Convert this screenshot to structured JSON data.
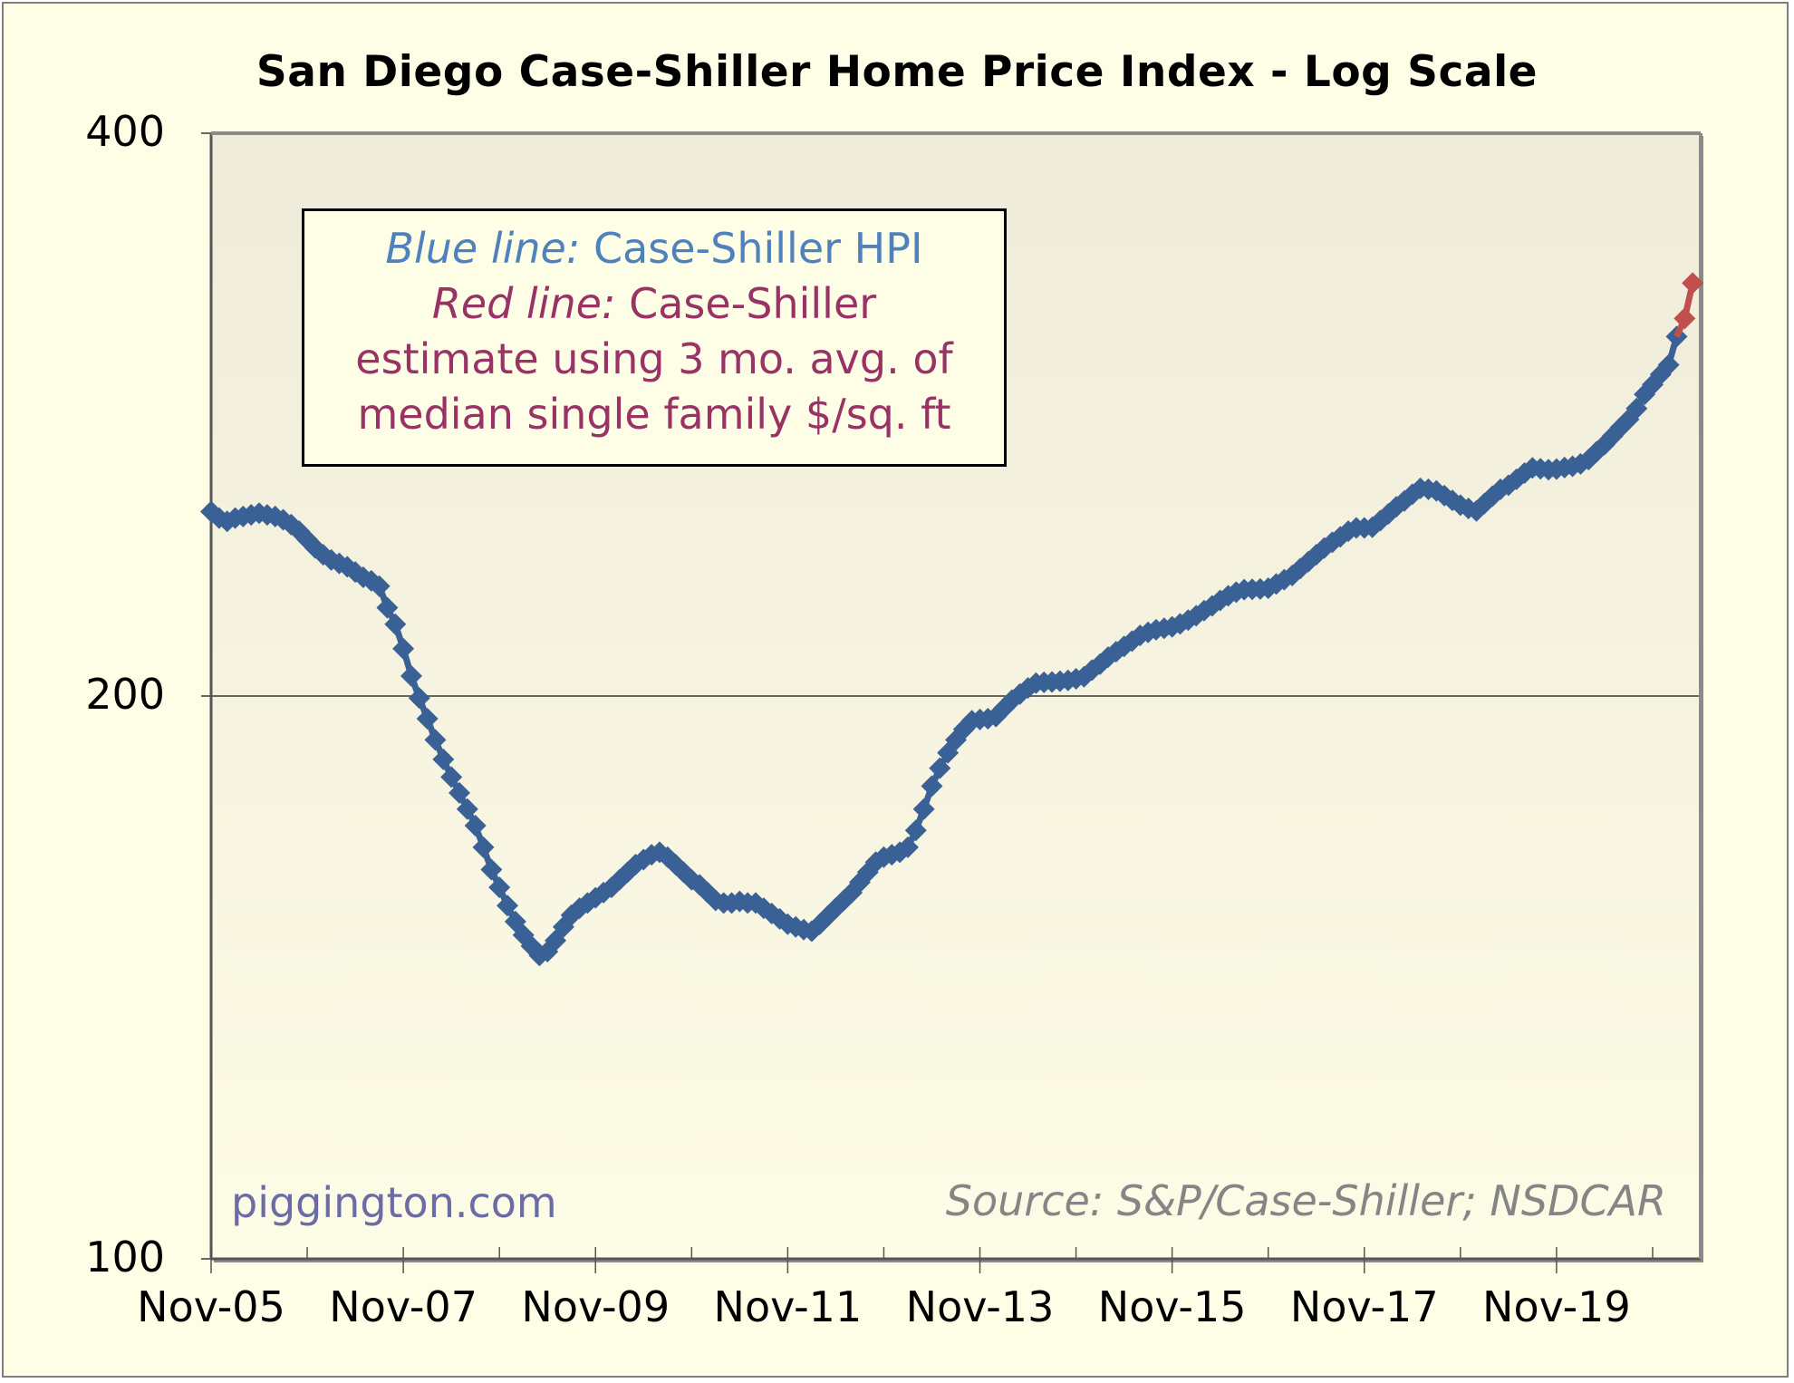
{
  "chart_data": {
    "type": "line",
    "title": "San Diego Case-Shiller Home Price Index - Log Scale",
    "xlabel": "",
    "ylabel": "",
    "yscale": "log",
    "ylim": [
      100,
      400
    ],
    "yticks": [
      {
        "value": 100,
        "label": "100"
      },
      {
        "value": 200,
        "label": "200"
      },
      {
        "value": 400,
        "label": "400"
      }
    ],
    "x_unit": "months since Nov-05",
    "xlim": [
      0,
      186
    ],
    "xticks_major": [
      {
        "value": 0,
        "label": "Nov-05"
      },
      {
        "value": 24,
        "label": "Nov-07"
      },
      {
        "value": 48,
        "label": "Nov-09"
      },
      {
        "value": 72,
        "label": "Nov-11"
      },
      {
        "value": 96,
        "label": "Nov-13"
      },
      {
        "value": 120,
        "label": "Nov-15"
      },
      {
        "value": 144,
        "label": "Nov-17"
      },
      {
        "value": 168,
        "label": "Nov-19"
      }
    ],
    "xticks_minor": [
      12,
      36,
      60,
      84,
      108,
      132,
      156,
      180
    ],
    "grid": {
      "y": true,
      "x": false
    },
    "series": [
      {
        "name": "Case-Shiller HPI",
        "color": "#3a6195",
        "x_start": 0,
        "values": [
          251,
          249,
          248,
          249,
          249.5,
          250,
          250.5,
          250,
          249.5,
          248.5,
          247,
          245,
          242.5,
          240,
          238,
          236.5,
          235.5,
          234.5,
          233,
          231.5,
          230.5,
          229,
          223,
          218.5,
          212,
          205,
          199.5,
          194.5,
          189.5,
          185,
          181,
          177.5,
          174,
          170.5,
          166,
          161.5,
          158,
          154.5,
          151.5,
          149,
          147,
          145.3,
          146,
          148,
          150.5,
          152.7,
          154,
          155,
          156,
          157,
          158,
          159.5,
          161,
          162.5,
          163.5,
          164.5,
          165,
          164,
          162.5,
          161,
          159.5,
          158.5,
          157,
          155.5,
          155,
          155,
          155.3,
          155,
          155,
          154,
          153,
          152,
          151,
          150.5,
          150,
          149.7,
          151,
          152.5,
          154,
          155.5,
          157,
          159,
          161,
          163,
          164,
          164.5,
          165,
          166,
          169.5,
          174,
          179,
          183,
          186.5,
          189.5,
          192,
          194,
          194.3,
          194.5,
          195,
          197,
          199,
          200.5,
          202,
          203.2,
          203.4,
          203.5,
          203.7,
          203.9,
          204.3,
          204.8,
          206.5,
          208,
          209.8,
          211.2,
          212.6,
          214,
          215.5,
          216.3,
          217,
          217.4,
          217.8,
          218.6,
          219.6,
          220.8,
          222.2,
          223.5,
          225,
          226.3,
          227.3,
          228,
          228.1,
          228.2,
          228.4,
          229.6,
          230.8,
          232,
          234,
          236,
          238,
          240,
          241.7,
          243.3,
          245,
          246,
          246,
          246.2,
          248.2,
          250.3,
          252.5,
          254.3,
          256.4,
          258.3,
          258,
          257.5,
          256,
          254.5,
          253,
          252,
          251.2,
          253.5,
          255.8,
          258,
          259.3,
          261.2,
          263.2,
          264.9,
          264.6,
          264.3,
          264.5,
          265,
          265.4,
          266.2,
          267.6,
          270.2,
          272.6,
          275.5,
          278.4,
          281.2,
          285,
          290,
          293.5,
          297.2,
          300.7,
          311.4
        ]
      },
      {
        "name": "Case-Shiller estimate",
        "color": "#c0504d",
        "x_start": 184,
        "values": [
          318.4,
          332.6
        ]
      }
    ],
    "legend": {
      "position": "top-left",
      "lines": [
        {
          "italic": "Blue line:",
          "text": " Case-Shiller HPI"
        },
        {
          "italic": "Red line:",
          "text": " Case-Shiller"
        },
        {
          "text": "estimate using 3 mo. avg. of"
        },
        {
          "text": "median single family $/sq. ft"
        }
      ]
    },
    "annotations": {
      "watermark": "piggington.com",
      "source": "Source: S&P/Case-Shiller; NSDCAR"
    }
  },
  "colors": {
    "legend_blue": "#4f81bd",
    "legend_red": "#993366",
    "watermark": "#6b6ba6",
    "source": "#858585"
  }
}
